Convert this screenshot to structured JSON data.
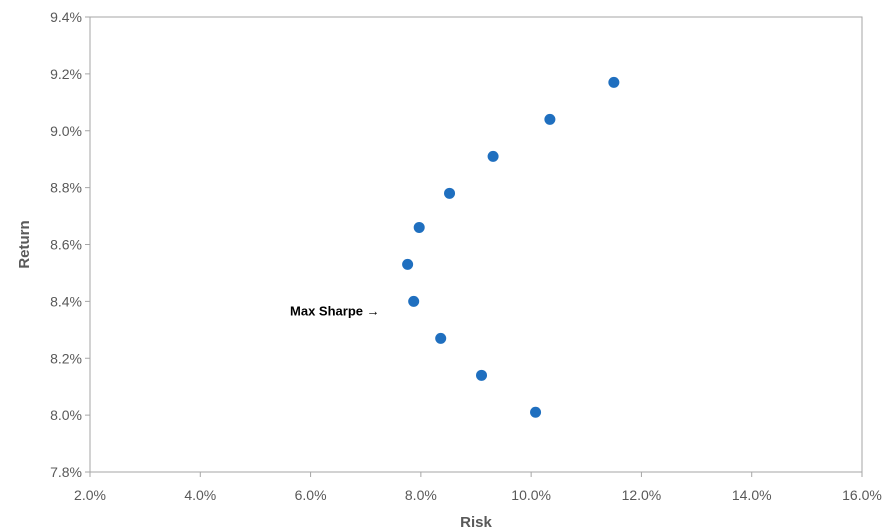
{
  "chart_data": {
    "type": "scatter",
    "xlabel": "Risk",
    "ylabel": "Return",
    "xlim": [
      0.02,
      0.16
    ],
    "ylim": [
      0.078,
      0.094
    ],
    "x_ticks": [
      "2.0%",
      "4.0%",
      "6.0%",
      "8.0%",
      "10.0%",
      "12.0%",
      "14.0%",
      "16.0%"
    ],
    "y_ticks": [
      "7.8%",
      "8.0%",
      "8.2%",
      "8.4%",
      "8.6%",
      "8.8%",
      "9.0%",
      "9.2%",
      "9.4%"
    ],
    "grid": false,
    "points": [
      {
        "x": 0.1008,
        "y": 0.0801
      },
      {
        "x": 0.091,
        "y": 0.0814
      },
      {
        "x": 0.0836,
        "y": 0.0827
      },
      {
        "x": 0.0787,
        "y": 0.084
      },
      {
        "x": 0.0776,
        "y": 0.0853
      },
      {
        "x": 0.0797,
        "y": 0.0866
      },
      {
        "x": 0.0852,
        "y": 0.0878
      },
      {
        "x": 0.0931,
        "y": 0.0891
      },
      {
        "x": 0.1034,
        "y": 0.0904
      },
      {
        "x": 0.115,
        "y": 0.0917
      }
    ],
    "annotation": {
      "text": "Max Sharpe →",
      "x": 0.0776,
      "y": 0.084
    },
    "colors": {
      "point": "#1f6fbf",
      "frame": "#a6a6a6",
      "text": "#595959"
    }
  }
}
